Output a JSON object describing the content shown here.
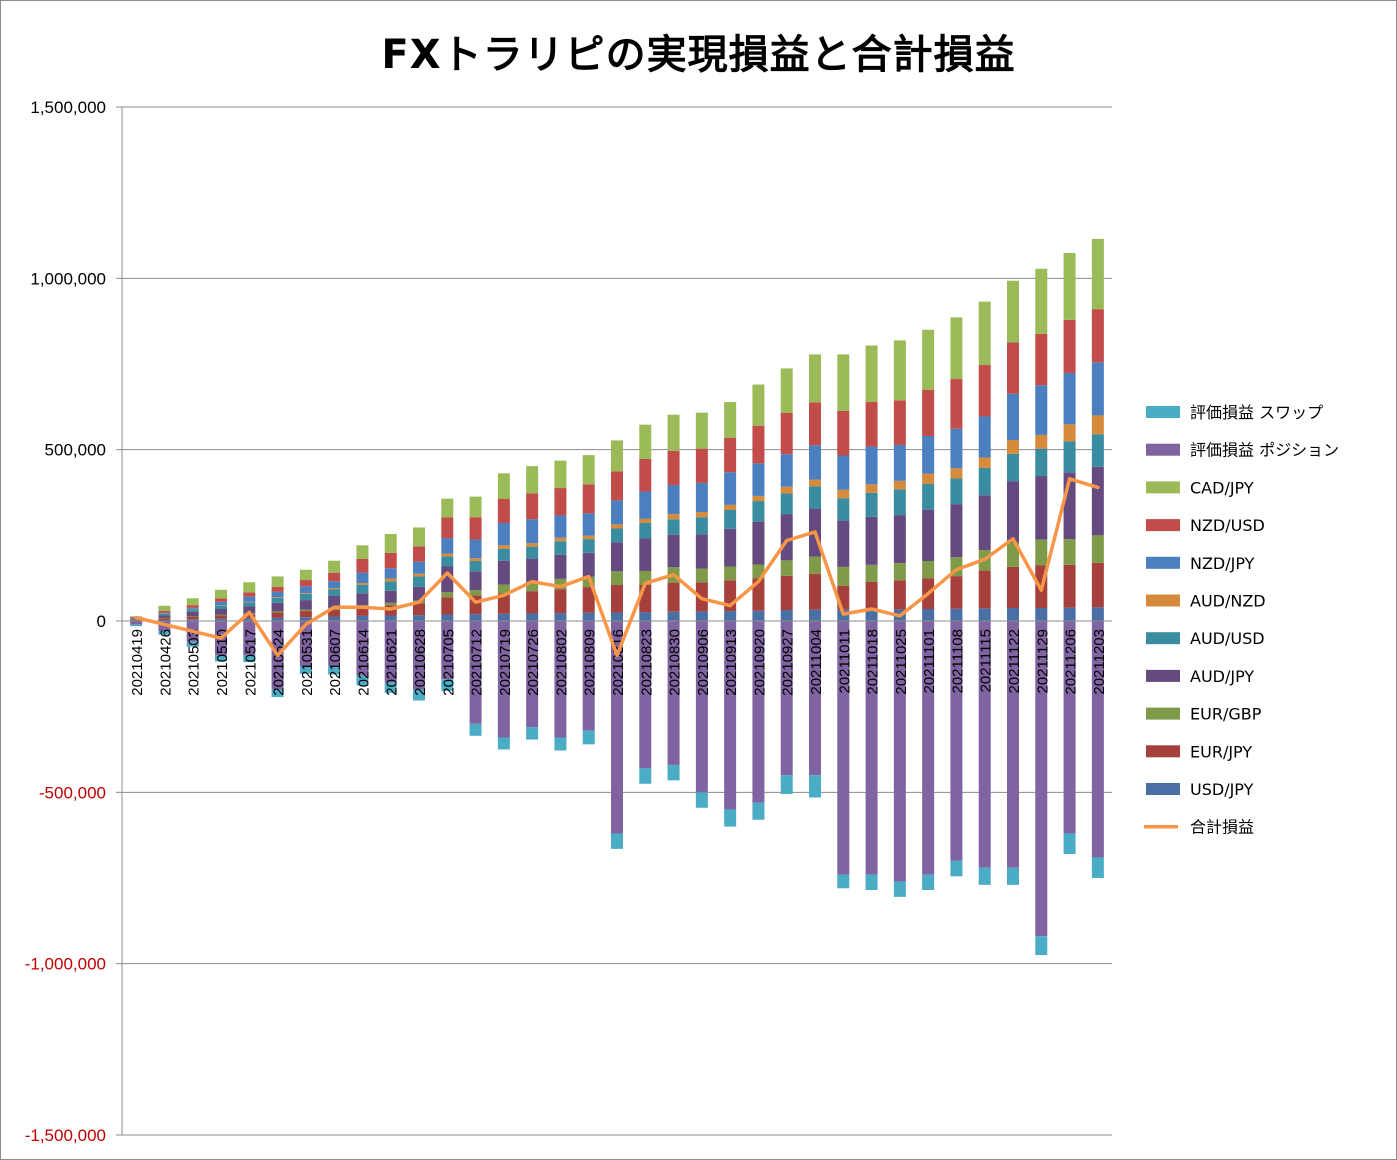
{
  "chart_data": {
    "type": "bar",
    "stacked": true,
    "title": "FXトラリピの実現損益と合計損益",
    "xlabel": "",
    "ylabel": "",
    "ylim": [
      -1500000,
      1500000
    ],
    "yticks": [
      1500000,
      1000000,
      500000,
      0,
      -500000,
      -1000000,
      -1500000
    ],
    "ytick_labels": [
      "1,500,000",
      "1,000,000",
      "500,000",
      "0",
      "-500,000",
      "-1,000,000",
      "-1,500,000"
    ],
    "grid": true,
    "legend_position": "right",
    "categories": [
      "20210419",
      "20210426",
      "20210503",
      "20210510",
      "20210517",
      "20210524",
      "20210531",
      "20210607",
      "20210614",
      "20210621",
      "20210628",
      "20210705",
      "20210712",
      "20210719",
      "20210726",
      "20210802",
      "20210809",
      "20210816",
      "20210823",
      "20210830",
      "20210906",
      "20210913",
      "20210920",
      "20210927",
      "20211004",
      "20211011",
      "20211018",
      "20211025",
      "20211101",
      "20211108",
      "20211115",
      "20211122",
      "20211129",
      "20211206",
      "20211203"
    ],
    "series": [
      {
        "name": "USD/JPY",
        "color": "#4a6fa5",
        "values": [
          1000,
          3000,
          5000,
          7000,
          8000,
          10000,
          11000,
          13000,
          15000,
          16000,
          17000,
          19000,
          20000,
          21000,
          22000,
          23000,
          24000,
          25000,
          26000,
          27000,
          28000,
          29000,
          30000,
          32000,
          33000,
          33000,
          34000,
          34000,
          35000,
          36000,
          37000,
          38000,
          38000,
          39000,
          40000
        ]
      },
      {
        "name": "EUR/JPY",
        "color": "#a5403c",
        "values": [
          2000,
          5000,
          8000,
          10000,
          12000,
          15000,
          18000,
          20000,
          25000,
          30000,
          35000,
          50000,
          55000,
          60000,
          65000,
          70000,
          75000,
          80000,
          80000,
          85000,
          85000,
          90000,
          95000,
          100000,
          105000,
          70000,
          80000,
          85000,
          90000,
          95000,
          110000,
          120000,
          125000,
          125000,
          130000
        ]
      },
      {
        "name": "EUR/GBP",
        "color": "#7f9a48",
        "values": [
          500,
          1000,
          1500,
          2000,
          2500,
          3000,
          4000,
          5000,
          6000,
          7000,
          8000,
          15000,
          15000,
          25000,
          25000,
          30000,
          30000,
          40000,
          40000,
          45000,
          40000,
          40000,
          40000,
          45000,
          50000,
          55000,
          50000,
          50000,
          50000,
          55000,
          60000,
          70000,
          75000,
          75000,
          80000
        ]
      },
      {
        "name": "AUD/JPY",
        "color": "#644a7e",
        "values": [
          3000,
          8000,
          12000,
          16000,
          20000,
          25000,
          28000,
          35000,
          35000,
          35000,
          40000,
          75000,
          55000,
          70000,
          70000,
          70000,
          70000,
          85000,
          95000,
          95000,
          100000,
          110000,
          125000,
          135000,
          140000,
          135000,
          140000,
          140000,
          150000,
          155000,
          160000,
          180000,
          185000,
          195000,
          200000
        ]
      },
      {
        "name": "AUD/USD",
        "color": "#3a8ca0",
        "values": [
          2000,
          5000,
          8000,
          10000,
          12000,
          15000,
          18000,
          20000,
          25000,
          28000,
          30000,
          30000,
          30000,
          35000,
          35000,
          40000,
          40000,
          40000,
          45000,
          45000,
          50000,
          55000,
          60000,
          60000,
          65000,
          65000,
          70000,
          75000,
          75000,
          75000,
          80000,
          80000,
          80000,
          90000,
          95000
        ]
      },
      {
        "name": "AUD/NZD",
        "color": "#d68a3c",
        "values": [
          300,
          500,
          800,
          1000,
          1500,
          2000,
          2500,
          3000,
          5000,
          8000,
          8000,
          8000,
          8000,
          10000,
          10000,
          10000,
          10000,
          12000,
          12000,
          15000,
          15000,
          15000,
          15000,
          20000,
          20000,
          25000,
          25000,
          25000,
          30000,
          30000,
          30000,
          40000,
          40000,
          50000,
          55000
        ]
      },
      {
        "name": "NZD/JPY",
        "color": "#4b7fc0",
        "values": [
          1000,
          2000,
          3000,
          10000,
          15000,
          15000,
          20000,
          20000,
          30000,
          30000,
          35000,
          45000,
          55000,
          65000,
          70000,
          65000,
          65000,
          70000,
          80000,
          85000,
          85000,
          95000,
          95000,
          95000,
          100000,
          100000,
          110000,
          105000,
          110000,
          115000,
          120000,
          135000,
          145000,
          150000,
          155000
        ]
      },
      {
        "name": "NZD/USD",
        "color": "#c24c49",
        "values": [
          2000,
          5000,
          8000,
          10000,
          12000,
          15000,
          18000,
          25000,
          40000,
          45000,
          45000,
          60000,
          65000,
          70000,
          75000,
          80000,
          85000,
          85000,
          95000,
          100000,
          100000,
          100000,
          110000,
          120000,
          125000,
          130000,
          130000,
          130000,
          135000,
          145000,
          150000,
          150000,
          150000,
          155000,
          155000
        ]
      },
      {
        "name": "CAD/JPY",
        "color": "#9bbb59",
        "values": [
          2000,
          15000,
          20000,
          25000,
          30000,
          30000,
          30000,
          35000,
          40000,
          55000,
          55000,
          55000,
          60000,
          75000,
          80000,
          80000,
          85000,
          90000,
          100000,
          105000,
          105000,
          105000,
          120000,
          130000,
          140000,
          165000,
          165000,
          175000,
          175000,
          180000,
          185000,
          180000,
          190000,
          195000,
          205000
        ]
      },
      {
        "name": "評価損益 ポジション",
        "color": "#8064a2",
        "values": [
          -10000,
          -30000,
          -60000,
          -100000,
          -100000,
          -200000,
          -130000,
          -130000,
          -160000,
          -180000,
          -200000,
          -170000,
          -300000,
          -340000,
          -310000,
          -340000,
          -320000,
          -620000,
          -430000,
          -420000,
          -500000,
          -550000,
          -530000,
          -450000,
          -450000,
          -740000,
          -740000,
          -760000,
          -740000,
          -700000,
          -720000,
          -720000,
          -920000,
          -620000,
          -690000
        ]
      },
      {
        "name": "評価損益 スワップ",
        "color": "#4bacc6",
        "values": [
          -5000,
          -10000,
          -15000,
          -18000,
          -20000,
          -22000,
          -24000,
          -26000,
          -28000,
          -30000,
          -32000,
          -34000,
          -35000,
          -35000,
          -36000,
          -38000,
          -40000,
          -45000,
          -45000,
          -45000,
          -45000,
          -50000,
          -50000,
          -55000,
          -65000,
          -40000,
          -45000,
          -45000,
          -45000,
          -45000,
          -50000,
          -50000,
          -55000,
          -60000,
          -60000
        ]
      }
    ],
    "line_series": {
      "name": "合計損益",
      "color": "#f79646",
      "values": [
        10000,
        -10000,
        -30000,
        -50000,
        25000,
        -100000,
        -10000,
        40000,
        40000,
        35000,
        55000,
        140000,
        55000,
        75000,
        115000,
        100000,
        130000,
        -100000,
        110000,
        135000,
        65000,
        45000,
        115000,
        235000,
        260000,
        20000,
        35000,
        15000,
        80000,
        150000,
        180000,
        240000,
        90000,
        415000,
        390000
      ]
    },
    "legend_order": [
      "評価損益 スワップ",
      "評価損益 ポジション",
      "CAD/JPY",
      "NZD/USD",
      "NZD/JPY",
      "AUD/NZD",
      "AUD/USD",
      "AUD/JPY",
      "EUR/GBP",
      "EUR/JPY",
      "USD/JPY",
      "合計損益"
    ],
    "positive_tick_color": "#000000",
    "negative_tick_color": "#c00000"
  }
}
